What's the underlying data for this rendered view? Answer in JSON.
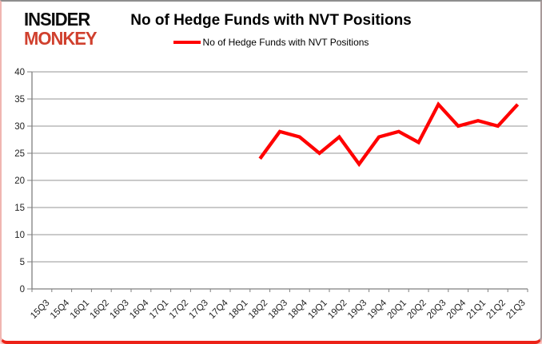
{
  "header": {
    "logo_line1": "INSIDER",
    "logo_line2": "MONKEY",
    "title": "No of Hedge Funds with NVT Positions",
    "legend_label": "No of Hedge Funds with NVT Positions"
  },
  "colors": {
    "line": "#ff0000",
    "logo_red": "#d0402e",
    "border_red": "#ec2217",
    "grid": "#969696",
    "axis": "#7f7f7f"
  },
  "chart_data": {
    "type": "line",
    "title": "No of Hedge Funds with NVT Positions",
    "categories": [
      "15Q3",
      "15Q4",
      "16Q1",
      "16Q2",
      "16Q3",
      "16Q4",
      "17Q1",
      "17Q2",
      "17Q3",
      "17Q4",
      "18Q1",
      "18Q2",
      "18Q3",
      "18Q4",
      "19Q1",
      "19Q2",
      "19Q3",
      "19Q4",
      "20Q1",
      "20Q2",
      "20Q3",
      "20Q4",
      "21Q1",
      "21Q2",
      "21Q3"
    ],
    "series": [
      {
        "name": "No of Hedge Funds with NVT Positions",
        "color": "#ff0000",
        "values": [
          null,
          null,
          null,
          null,
          null,
          null,
          null,
          null,
          null,
          null,
          null,
          24,
          29,
          28,
          25,
          28,
          23,
          28,
          29,
          27,
          34,
          30,
          31,
          30,
          34
        ]
      }
    ],
    "ylim": [
      0,
      40
    ],
    "yticks": [
      0,
      5,
      10,
      15,
      20,
      25,
      30,
      35,
      40
    ],
    "xlabel": "",
    "ylabel": "",
    "grid": true,
    "legend_position": "top",
    "x_label_rotation": -45
  }
}
